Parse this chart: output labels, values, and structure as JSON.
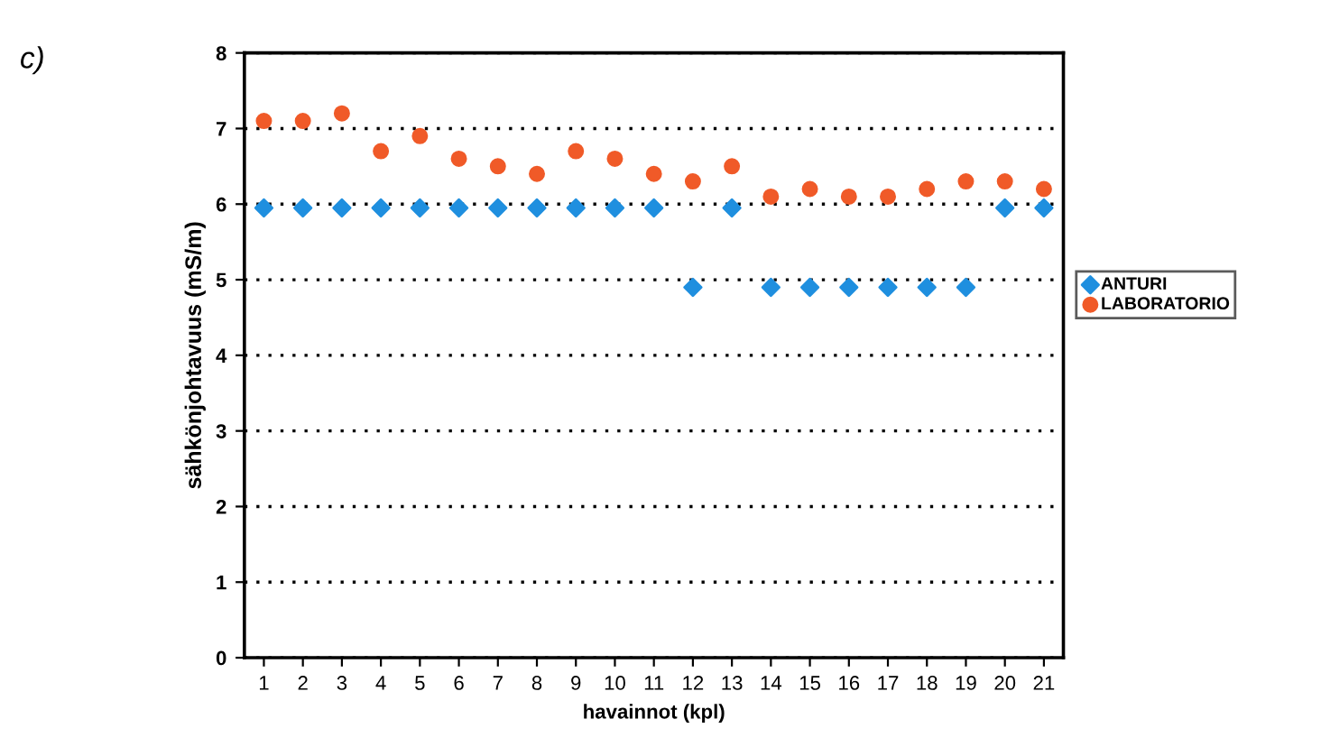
{
  "chart_data": {
    "type": "scatter",
    "ylabel": "sähkönjohtavuus (mS/m)",
    "xlabel": "havainnot (kpl)",
    "annotations": [
      "c)"
    ],
    "categories": [
      "1",
      "2",
      "3",
      "4",
      "5",
      "6",
      "7",
      "8",
      "9",
      "10",
      "11",
      "12",
      "13",
      "14",
      "15",
      "16",
      "17",
      "18",
      "19",
      "20",
      "21"
    ],
    "series": [
      {
        "name": "ANTURI",
        "color": "#1f8fdf",
        "marker": "diamond",
        "values": [
          5.95,
          5.95,
          5.95,
          5.95,
          5.95,
          5.95,
          5.95,
          5.95,
          5.95,
          5.95,
          5.95,
          4.9,
          5.95,
          4.9,
          4.9,
          4.9,
          4.9,
          4.9,
          4.9,
          5.95,
          5.95
        ]
      },
      {
        "name": "LABORATORIO",
        "color": "#f05a28",
        "marker": "circle",
        "values": [
          7.1,
          7.1,
          7.2,
          6.7,
          6.9,
          6.6,
          6.5,
          6.4,
          6.7,
          6.6,
          6.4,
          6.3,
          6.5,
          6.1,
          6.2,
          6.1,
          6.1,
          6.2,
          6.3,
          6.3,
          6.2
        ]
      }
    ],
    "ylim": [
      0,
      8
    ],
    "yticks": [
      0,
      1,
      2,
      3,
      4,
      5,
      6,
      7,
      8
    ],
    "grid": "y",
    "legend": "right"
  }
}
